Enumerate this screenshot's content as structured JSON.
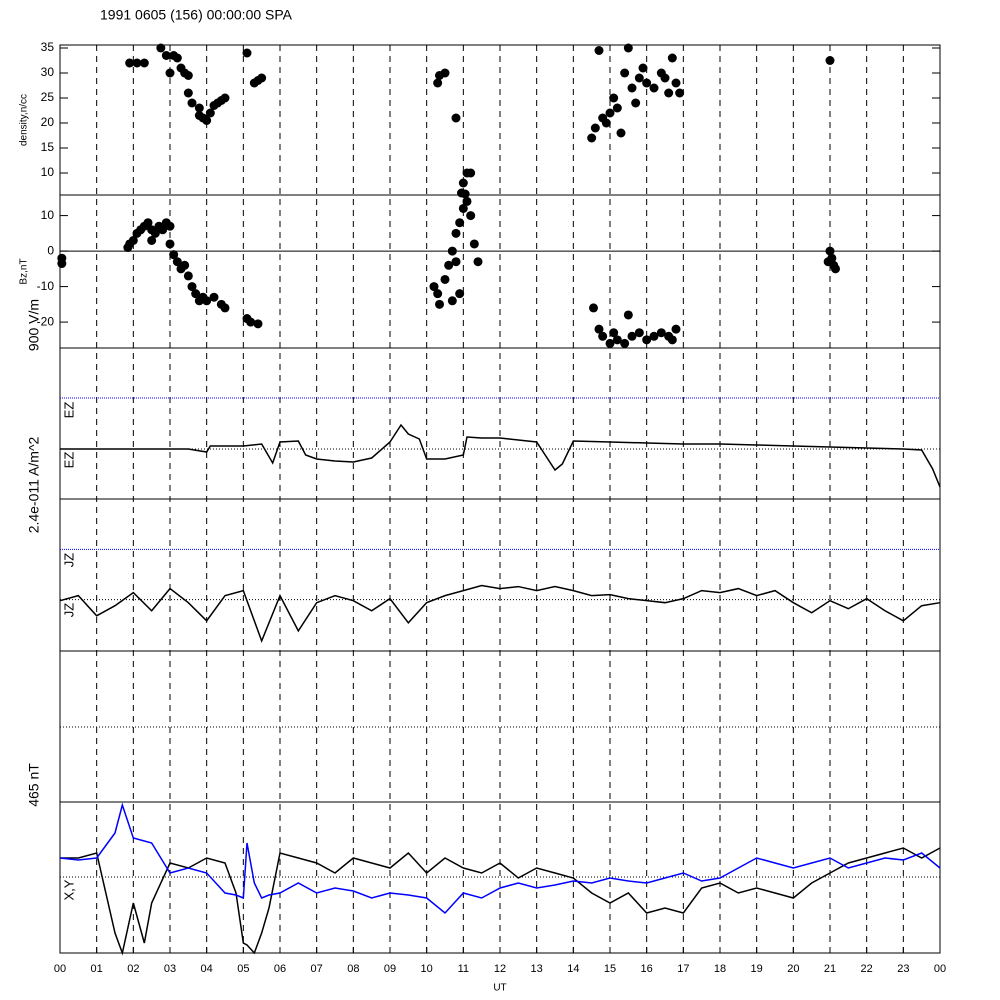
{
  "chart_data": [
    {
      "type": "scatter",
      "title": "1991 0605 (156) 00:00:00 SPA",
      "ylabel": "density,n/cc",
      "ylim": [
        5.6,
        35.6
      ],
      "yticks": [
        10,
        15,
        20,
        25,
        30,
        35
      ],
      "series": [
        {
          "color": "#000000",
          "x": [
            1.9,
            2.1,
            2.3,
            2.75,
            2.9,
            3.0,
            3.1,
            3.2,
            3.3,
            3.4,
            3.5,
            3.5,
            3.6,
            3.8,
            3.8,
            3.9,
            4.0,
            4.1,
            4.2,
            4.3,
            4.4,
            4.5,
            5.1,
            5.3,
            5.4,
            5.5,
            10.3,
            10.35,
            10.5,
            10.8,
            10.95,
            11.0,
            11.05,
            11.1,
            11.2,
            14.5,
            14.6,
            14.7,
            14.8,
            14.9,
            15.0,
            15.1,
            15.2,
            15.3,
            15.4,
            15.5,
            15.6,
            15.7,
            15.8,
            15.9,
            16.0,
            16.2,
            16.4,
            16.5,
            16.6,
            16.7,
            16.8,
            16.9,
            21.0
          ],
          "values": [
            32,
            32,
            32,
            35,
            33.5,
            30,
            33.5,
            33,
            31,
            30,
            29.5,
            26,
            24,
            21.5,
            23,
            21,
            20.5,
            22,
            23.5,
            24,
            24.5,
            25,
            34,
            28,
            28.5,
            29,
            28,
            29.5,
            30,
            21,
            6,
            8,
            5.8,
            10,
            10,
            17,
            19,
            34.5,
            21,
            20,
            22,
            25,
            23,
            18,
            30,
            35,
            27,
            24,
            29,
            31,
            28,
            27,
            30,
            29,
            26,
            33,
            28,
            26,
            32.5
          ]
        }
      ]
    },
    {
      "type": "scatter",
      "ylabel": "Bz,nT",
      "ylim": [
        -27.3,
        15.8
      ],
      "yticks": [
        -20,
        -10,
        0,
        10
      ],
      "hlines": [
        0
      ],
      "series": [
        {
          "color": "#000000",
          "x": [
            0.05,
            0.05,
            1.85,
            1.9,
            2.0,
            2.1,
            2.2,
            2.3,
            2.4,
            2.5,
            2.6,
            2.7,
            2.8,
            2.9,
            3.0,
            2.5,
            3.0,
            3.1,
            3.2,
            3.3,
            3.4,
            3.5,
            3.6,
            3.7,
            3.8,
            3.9,
            4.0,
            4.2,
            4.4,
            4.5,
            5.1,
            5.2,
            5.4,
            10.2,
            10.3,
            10.35,
            10.5,
            10.6,
            10.7,
            10.8,
            10.9,
            10.8,
            10.9,
            11.0,
            11.1,
            11.2,
            11.3,
            11.4,
            10.7,
            14.55,
            14.7,
            14.8,
            15.0,
            15.2,
            15.4,
            15.6,
            15.8,
            16.0,
            16.2,
            16.4,
            16.6,
            16.8,
            15.1,
            15.5,
            16.7,
            21.0,
            21.05,
            21.1,
            21.15,
            20.95
          ],
          "values": [
            -2,
            -3.5,
            1,
            2,
            3,
            5,
            6,
            7,
            8,
            6,
            5,
            7,
            6,
            8,
            7,
            3,
            2,
            -1,
            -3,
            -5,
            -4,
            -7,
            -10,
            -12,
            -14,
            -13,
            -14,
            -13,
            -15,
            -16,
            -19,
            -20,
            -20.5,
            -10,
            -12,
            -15,
            -8,
            -4,
            0,
            -3,
            -12,
            5,
            8,
            12,
            14,
            10,
            2,
            -3,
            -14,
            -16,
            -22,
            -24,
            -26,
            -25,
            -26,
            -24,
            -23,
            -25,
            -24,
            -23,
            -24,
            -22,
            -23,
            -18,
            -25,
            0,
            -2,
            -4,
            -5,
            -3
          ]
        }
      ]
    },
    {
      "type": "line",
      "labels": [
        "900 V/m",
        "EZ",
        "EZ"
      ],
      "ylim": [
        0,
        151
      ],
      "hlines": [
        50
      ],
      "bluelines": [
        101
      ],
      "x": [
        0,
        0.5,
        1,
        1.5,
        2,
        2.5,
        3,
        3.5,
        4,
        4.1,
        4.5,
        5,
        5.5,
        5.8,
        6,
        6.5,
        6.7,
        7,
        7.5,
        8,
        8.5,
        9,
        9.3,
        9.5,
        9.8,
        10,
        10.5,
        11,
        11.1,
        11.5,
        12,
        12.5,
        13,
        13.5,
        13.7,
        14,
        15,
        16,
        17,
        18,
        19,
        20,
        21,
        22,
        23,
        23.5,
        23.8,
        24
      ],
      "series": [
        {
          "color": "#000000",
          "values": [
            50,
            50,
            50,
            50,
            50,
            50,
            50,
            50,
            47,
            53,
            53,
            53,
            55,
            36,
            57,
            58,
            44,
            40,
            38,
            37,
            41,
            57,
            74,
            65,
            60,
            40,
            40,
            44,
            62,
            61,
            61,
            59,
            57,
            29,
            35,
            58,
            57,
            56,
            55,
            55,
            54,
            53,
            52,
            51,
            50,
            49,
            30,
            12
          ]
        }
      ]
    },
    {
      "type": "line",
      "labels": [
        "2.4e-011 A/m^2",
        "JZ",
        "JZ"
      ],
      "ylim": [
        0,
        151
      ],
      "hlines": [
        51
      ],
      "bluelines": [
        101
      ],
      "x": [
        0,
        0.5,
        1,
        1.5,
        2,
        2.5,
        3,
        3.5,
        4,
        4.5,
        5,
        5.5,
        6,
        6.5,
        7,
        7.5,
        8,
        8.5,
        9,
        9.5,
        10,
        10.5,
        11,
        11.5,
        12,
        12.5,
        13,
        13.5,
        14,
        14.5,
        15,
        15.5,
        16,
        16.5,
        17,
        17.5,
        18,
        18.5,
        19,
        19.5,
        20,
        20.5,
        21,
        21.5,
        22,
        22.5,
        23,
        23.5,
        24
      ],
      "series": [
        {
          "color": "#000000",
          "values": [
            50,
            55,
            35,
            45,
            58,
            40,
            62,
            48,
            30,
            55,
            60,
            10,
            55,
            20,
            48,
            55,
            50,
            40,
            52,
            28,
            48,
            55,
            60,
            65,
            62,
            64,
            60,
            64,
            60,
            55,
            56,
            52,
            50,
            48,
            52,
            60,
            58,
            62,
            55,
            60,
            48,
            38,
            50,
            42,
            52,
            40,
            30,
            45,
            48
          ]
        }
      ]
    },
    {
      "type": "line",
      "labels": [
        "465 nT"
      ],
      "ylim": [
        0,
        151
      ],
      "hlines": [
        75
      ],
      "series": []
    },
    {
      "type": "line",
      "labels": [
        "X,Y"
      ],
      "ylim": [
        0,
        151
      ],
      "hlines": [
        76
      ],
      "xlabel": "UT",
      "grid": true,
      "x": [
        0,
        0.5,
        1,
        1.5,
        1.7,
        2,
        2.3,
        2.5,
        3,
        3.5,
        4,
        4.5,
        4.8,
        5,
        5.1,
        5.3,
        5.5,
        5.7,
        6,
        6.5,
        7,
        7.5,
        8,
        8.5,
        9,
        9.5,
        10,
        10.5,
        11,
        11.5,
        12,
        12.5,
        13,
        13.5,
        14,
        14.5,
        15,
        15.5,
        16,
        16.5,
        17,
        17.5,
        18,
        18.5,
        19,
        19.5,
        20,
        20.5,
        21,
        21.5,
        22,
        22.5,
        23,
        23.5,
        24
      ],
      "series": [
        {
          "color": "#000000",
          "values": [
            95,
            95,
            100,
            20,
            0,
            50,
            10,
            50,
            90,
            85,
            95,
            90,
            60,
            10,
            8,
            0,
            20,
            45,
            100,
            95,
            90,
            80,
            95,
            90,
            85,
            100,
            80,
            95,
            85,
            80,
            90,
            75,
            85,
            80,
            75,
            60,
            50,
            60,
            40,
            45,
            40,
            65,
            70,
            60,
            65,
            60,
            55,
            70,
            80,
            90,
            95,
            100,
            105,
            95,
            105
          ]
        },
        {
          "color": "#0000ff",
          "values": [
            95,
            93,
            95,
            120,
            148,
            115,
            112,
            110,
            80,
            85,
            80,
            60,
            58,
            55,
            110,
            70,
            55,
            58,
            60,
            70,
            60,
            65,
            62,
            55,
            60,
            58,
            55,
            40,
            60,
            55,
            65,
            70,
            65,
            68,
            72,
            70,
            75,
            72,
            70,
            75,
            80,
            72,
            75,
            85,
            95,
            90,
            85,
            90,
            95,
            85,
            90,
            95,
            93,
            100,
            85
          ]
        }
      ],
      "xlim": [
        0,
        24
      ],
      "xticks": [
        {
          "value": 0,
          "label": "00"
        },
        {
          "value": 1,
          "label": "01"
        },
        {
          "value": 2,
          "label": "02"
        },
        {
          "value": 3,
          "label": "03"
        },
        {
          "value": 4,
          "label": "04"
        },
        {
          "value": 5,
          "label": "05"
        },
        {
          "value": 6,
          "label": "06"
        },
        {
          "value": 7,
          "label": "07"
        },
        {
          "value": 8,
          "label": "08"
        },
        {
          "value": 9,
          "label": "09"
        },
        {
          "value": 10,
          "label": "10"
        },
        {
          "value": 11,
          "label": "11"
        },
        {
          "value": 12,
          "label": "12"
        },
        {
          "value": 13,
          "label": "13"
        },
        {
          "value": 14,
          "label": "14"
        },
        {
          "value": 15,
          "label": "15"
        },
        {
          "value": 16,
          "label": "16"
        },
        {
          "value": 17,
          "label": "17"
        },
        {
          "value": 18,
          "label": "18"
        },
        {
          "value": 19,
          "label": "19"
        },
        {
          "value": 20,
          "label": "20"
        },
        {
          "value": 21,
          "label": "21"
        },
        {
          "value": 22,
          "label": "22"
        },
        {
          "value": 23,
          "label": "23"
        },
        {
          "value": 24,
          "label": "00"
        }
      ]
    }
  ]
}
